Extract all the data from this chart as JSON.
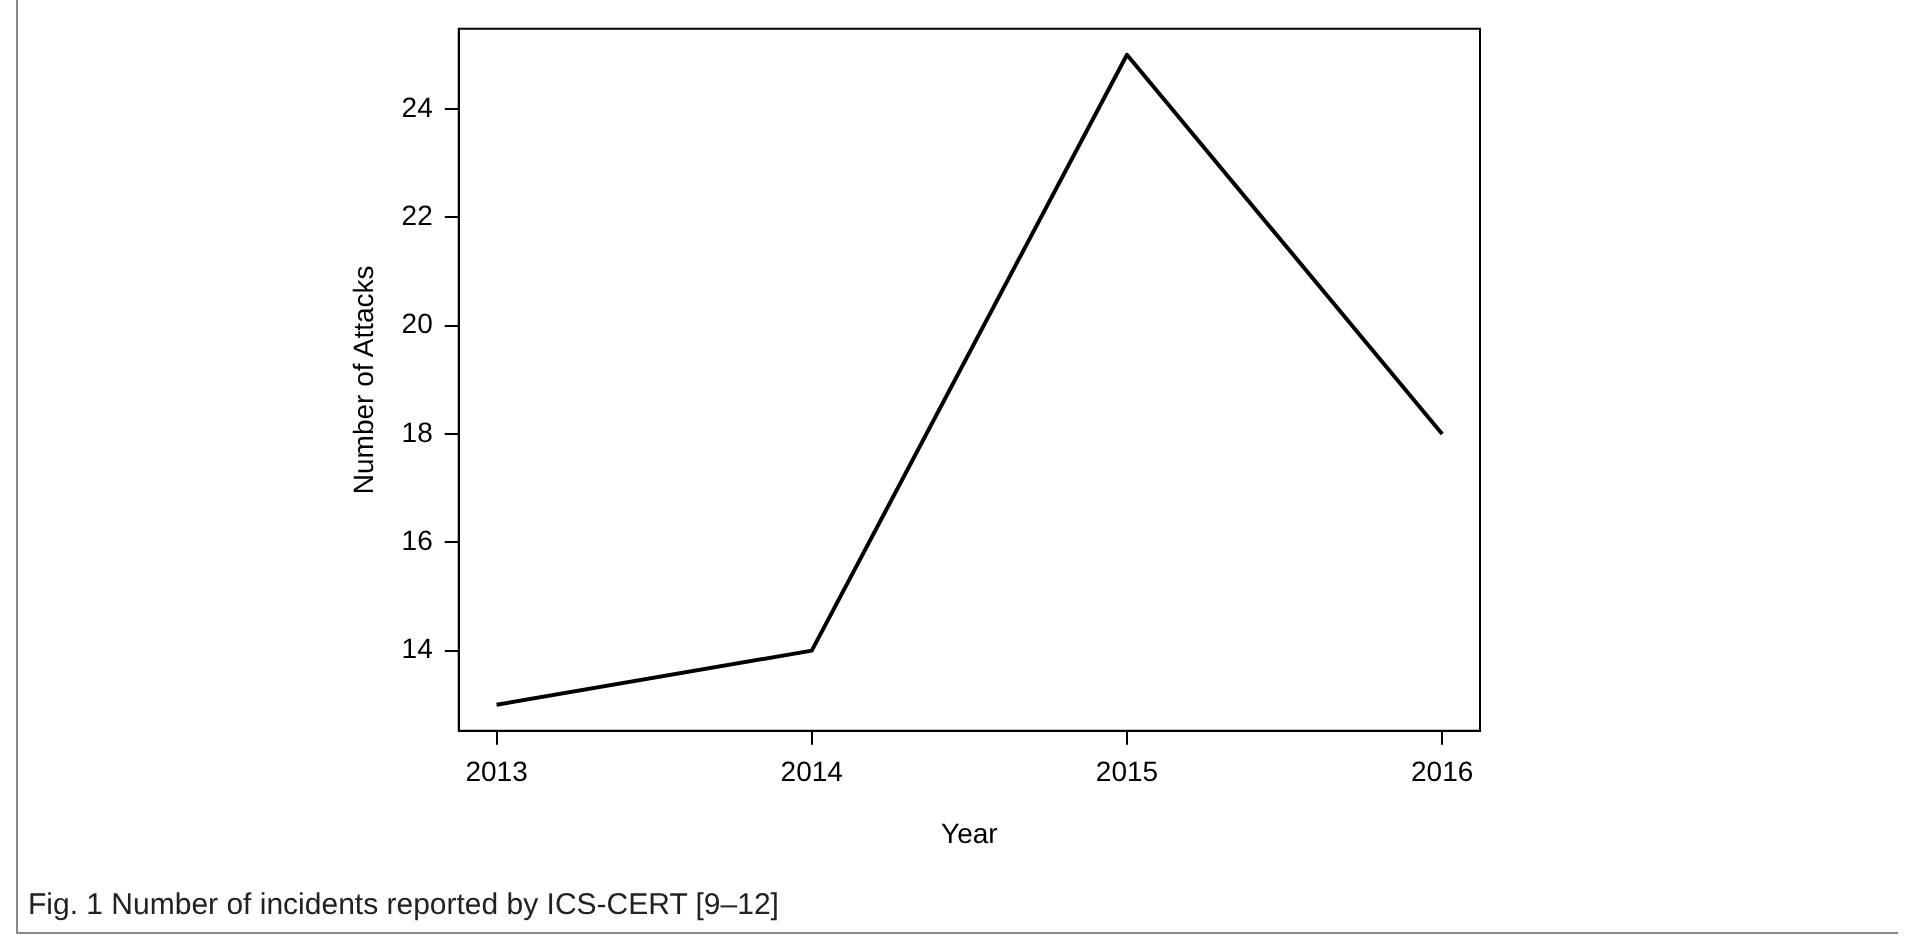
{
  "chart_data": {
    "type": "line",
    "xlabel": "Year",
    "ylabel": "Number of Attacks",
    "x": [
      2013,
      2014,
      2015,
      2016
    ],
    "series": [
      {
        "color": "#000000",
        "values": [
          13,
          14,
          25,
          18
        ]
      }
    ],
    "xlim": [
      2012.88,
      2016.12
    ],
    "xticks": [
      2013,
      2014,
      2015,
      2016
    ],
    "ylim": [
      12.52,
      25.48
    ],
    "yticks": [
      14,
      16,
      18,
      20,
      22,
      24
    ],
    "grid": false,
    "legend": false,
    "marker": "none",
    "line_style": "solid",
    "annotations": [
      "Fig. 1 Number of incidents reported by ICS-CERT [9–12]"
    ]
  }
}
